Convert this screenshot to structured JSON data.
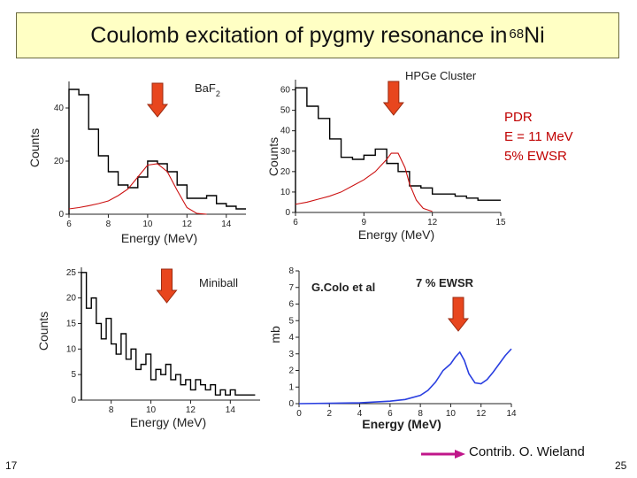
{
  "title": {
    "main": "Coulomb excitation of pygmy resonance in ",
    "sup": "68",
    "nucleus": "Ni"
  },
  "colors": {
    "title_bg": "#ffffc4",
    "arrow_fill": "#e8461e",
    "arrow_stroke": "#9a2a10",
    "red_curve": "#cc1111",
    "blue_curve": "#2a3fe0",
    "pdr_text": "#c00000",
    "contrib_arrow": "#c0168a"
  },
  "pdr_note": {
    "line1": "PDR",
    "line2": "E = 11 MeV",
    "line3": "5% EWSR"
  },
  "contrib": "Contrib. O. Wieland",
  "slide_number_left": "17",
  "slide_number_right": "25",
  "chart_data": [
    {
      "type": "line",
      "panel_label_main": "BaF",
      "panel_label_sub": "2",
      "xlabel": "Energy (MeV)",
      "ylabel": "Counts",
      "xlim": [
        6,
        15
      ],
      "ylim": [
        0,
        50
      ],
      "xticks": [
        "6",
        "8",
        "10",
        "12",
        "14"
      ],
      "xtick_values": [
        6,
        8,
        10,
        12,
        14
      ],
      "yticks": [
        "0",
        "20",
        "40"
      ],
      "ytick_values": [
        0,
        20,
        40
      ],
      "histogram": {
        "edges": [
          6,
          6.5,
          7,
          7.5,
          8,
          8.5,
          9,
          9.5,
          10,
          10.5,
          11,
          11.5,
          12,
          12.5,
          13,
          13.5,
          14,
          14.5,
          15
        ],
        "values": [
          47,
          45,
          32,
          22,
          16,
          11,
          10,
          14,
          20,
          19,
          16,
          11,
          6,
          6,
          7,
          4,
          3,
          2
        ]
      },
      "fit_curve": {
        "x": [
          6,
          6.5,
          7,
          7.5,
          8,
          8.5,
          9,
          9.5,
          10,
          10.5,
          11,
          11.5,
          12,
          12.5,
          13
        ],
        "y": [
          2,
          2.5,
          3.2,
          4,
          5,
          7,
          9.5,
          14,
          18.5,
          19,
          16,
          9,
          2.5,
          0.3,
          0
        ]
      },
      "arrow_x": 10.5
    },
    {
      "type": "line",
      "panel_label_main": "HPGe Cluster",
      "panel_label_sub": "",
      "xlabel": "Energy (MeV)",
      "ylabel": "Counts",
      "xlim": [
        6,
        15
      ],
      "ylim": [
        0,
        65
      ],
      "xticks": [
        "6",
        "9",
        "12",
        "15"
      ],
      "xtick_values": [
        6,
        9,
        12,
        15
      ],
      "yticks": [
        "0",
        "10",
        "20",
        "30",
        "40",
        "50",
        "60"
      ],
      "ytick_values": [
        0,
        10,
        20,
        30,
        40,
        50,
        60
      ],
      "histogram": {
        "edges": [
          6,
          6.5,
          7,
          7.5,
          8,
          8.5,
          9,
          9.5,
          10,
          10.5,
          11,
          11.5,
          12,
          12.5,
          13,
          13.5,
          14,
          14.5,
          15
        ],
        "values": [
          61,
          52,
          46,
          36,
          27,
          26,
          28,
          31,
          24,
          20,
          13,
          12,
          9,
          9,
          8,
          7,
          6,
          6
        ]
      },
      "fit_curve": {
        "x": [
          6,
          6.5,
          7,
          7.5,
          8,
          8.5,
          9,
          9.5,
          10,
          10.2,
          10.5,
          10.8,
          11,
          11.3,
          11.6,
          12
        ],
        "y": [
          4,
          5,
          6.5,
          8,
          10,
          13,
          16,
          20,
          26,
          29,
          29,
          22,
          14,
          6,
          2,
          0.5
        ]
      },
      "arrow_x": 10.3
    },
    {
      "type": "line",
      "panel_label_main": "Miniball",
      "panel_label_sub": "",
      "xlabel": "Energy (MeV)",
      "ylabel": "Counts",
      "xlim": [
        6.5,
        15.5
      ],
      "ylim": [
        0,
        26
      ],
      "xticks": [
        "8",
        "10",
        "12",
        "14"
      ],
      "xtick_values": [
        8,
        10,
        12,
        14
      ],
      "yticks": [
        "0",
        "5",
        "10",
        "15",
        "20",
        "25"
      ],
      "ytick_values": [
        0,
        5,
        10,
        15,
        20,
        25
      ],
      "histogram": {
        "edges": [
          6.5,
          6.75,
          7,
          7.25,
          7.5,
          7.75,
          8,
          8.25,
          8.5,
          8.75,
          9,
          9.25,
          9.5,
          9.75,
          10,
          10.25,
          10.5,
          10.75,
          11,
          11.25,
          11.5,
          11.75,
          12,
          12.25,
          12.5,
          12.75,
          13,
          13.25,
          13.5,
          13.75,
          14,
          14.25,
          14.5,
          14.75,
          15,
          15.25
        ],
        "values": [
          25,
          18,
          20,
          15,
          12,
          16,
          11,
          9,
          13,
          8,
          10,
          6,
          7,
          9,
          4,
          6,
          5,
          7,
          4,
          5,
          3,
          4,
          2,
          4,
          3,
          2,
          3,
          1,
          2,
          1,
          2,
          1,
          1,
          1,
          1
        ]
      },
      "arrow_x": 10.8
    },
    {
      "type": "line",
      "panel_label_main": "G.Colo et al",
      "panel_label_sub": "",
      "annotation": "7 % EWSR",
      "xlabel": "Energy (MeV)",
      "ylabel": "mb",
      "xlim": [
        0,
        14
      ],
      "ylim": [
        0,
        8
      ],
      "xticks": [
        "0",
        "2",
        "4",
        "6",
        "8",
        "10",
        "12",
        "14"
      ],
      "xtick_values": [
        0,
        2,
        4,
        6,
        8,
        10,
        12,
        14
      ],
      "yticks": [
        "0",
        "1",
        "2",
        "3",
        "4",
        "5",
        "6",
        "7",
        "8"
      ],
      "ytick_values": [
        0,
        1,
        2,
        3,
        4,
        5,
        6,
        7,
        8
      ],
      "series": [
        {
          "x": [
            0,
            4,
            6,
            7,
            8,
            8.5,
            9,
            9.5,
            10,
            10.3,
            10.6,
            10.9,
            11.2,
            11.6,
            12,
            12.4,
            12.8,
            13.2,
            13.6,
            14
          ],
          "values": [
            0,
            0.05,
            0.15,
            0.25,
            0.5,
            0.8,
            1.3,
            2.0,
            2.4,
            2.8,
            3.1,
            2.6,
            1.8,
            1.25,
            1.2,
            1.45,
            1.9,
            2.4,
            2.9,
            3.3
          ]
        }
      ],
      "arrow_x": 10.5
    }
  ]
}
